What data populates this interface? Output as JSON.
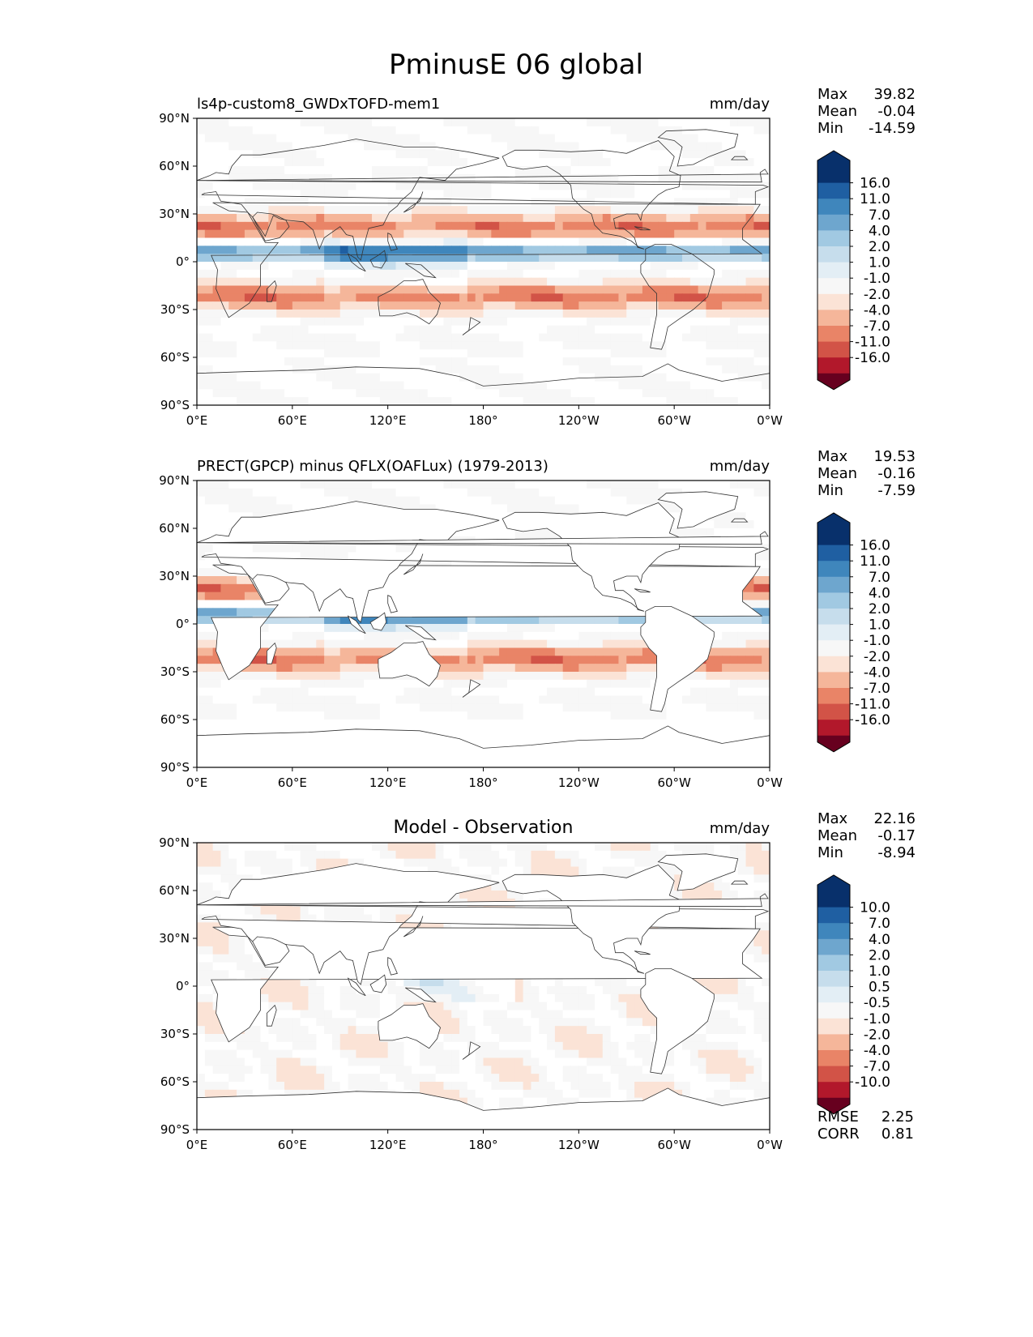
{
  "figure": {
    "title": "PminusE 06 global"
  },
  "colors": {
    "seq_blue": [
      "#ffffff",
      "#f7f7f7",
      "#e3eef5",
      "#c6ddec",
      "#a1c9e2",
      "#6ea6ce",
      "#3f86bc",
      "#1f5fa2",
      "#08306b"
    ],
    "seq_red": [
      "#f7f7f7",
      "#fbe3d6",
      "#f5b69a",
      "#e98467",
      "#d25347",
      "#b2182b",
      "#67001f"
    ]
  },
  "chart_data": [
    {
      "type": "heatmap",
      "panel_id": "model",
      "title_left": "ls4p-custom8_GWDxTOFD-mem1",
      "title_center": "",
      "units": "mm/day",
      "stats": {
        "Max": "39.82",
        "Mean": "-0.04",
        "Min": "-14.59"
      },
      "colorbar_ticks": [
        "16.0",
        "11.0",
        "7.0",
        "4.0",
        "2.0",
        "1.0",
        "-1.0",
        "-2.0",
        "-4.0",
        "-7.0",
        "-11.0",
        "-16.0"
      ],
      "x_ticks": [
        "0°E",
        "60°E",
        "120°E",
        "180°",
        "120°W",
        "60°W",
        "0°W"
      ],
      "y_ticks": [
        "90°N",
        "60°N",
        "30°N",
        "0°",
        "30°S",
        "60°S",
        "90°S"
      ],
      "xlim": [
        0,
        360
      ],
      "ylim": [
        -90,
        90
      ],
      "extend": "both",
      "metrics": null
    },
    {
      "type": "heatmap",
      "panel_id": "obs",
      "title_left": "PRECT(GPCP) minus QFLX(OAFLux) (1979-2013)",
      "title_center": "",
      "units": "mm/day",
      "stats": {
        "Max": "19.53",
        "Mean": "-0.16",
        "Min": "-7.59"
      },
      "colorbar_ticks": [
        "16.0",
        "11.0",
        "7.0",
        "4.0",
        "2.0",
        "1.0",
        "-1.0",
        "-2.0",
        "-4.0",
        "-7.0",
        "-11.0",
        "-16.0"
      ],
      "x_ticks": [
        "0°E",
        "60°E",
        "120°E",
        "180°",
        "120°W",
        "60°W",
        "0°W"
      ],
      "y_ticks": [
        "90°N",
        "60°N",
        "30°N",
        "0°",
        "30°S",
        "60°S",
        "90°S"
      ],
      "xlim": [
        0,
        360
      ],
      "ylim": [
        -90,
        90
      ],
      "extend": "both",
      "metrics": null
    },
    {
      "type": "heatmap",
      "panel_id": "diff",
      "title_left": "",
      "title_center": "Model - Observation",
      "units": "mm/day",
      "stats": {
        "Max": "22.16",
        "Mean": "-0.17",
        "Min": "-8.94"
      },
      "colorbar_ticks": [
        "10.0",
        "7.0",
        "4.0",
        "2.0",
        "1.0",
        "0.5",
        "-0.5",
        "-1.0",
        "-2.0",
        "-4.0",
        "-7.0",
        "-10.0"
      ],
      "x_ticks": [
        "0°E",
        "60°E",
        "120°E",
        "180°",
        "120°W",
        "60°W",
        "0°W"
      ],
      "y_ticks": [
        "90°N",
        "60°N",
        "30°N",
        "0°",
        "30°S",
        "60°S",
        "90°S"
      ],
      "xlim": [
        0,
        360
      ],
      "ylim": [
        -90,
        90
      ],
      "extend": "both",
      "metrics": {
        "RMSE": "2.25",
        "CORR": "0.81"
      }
    }
  ]
}
